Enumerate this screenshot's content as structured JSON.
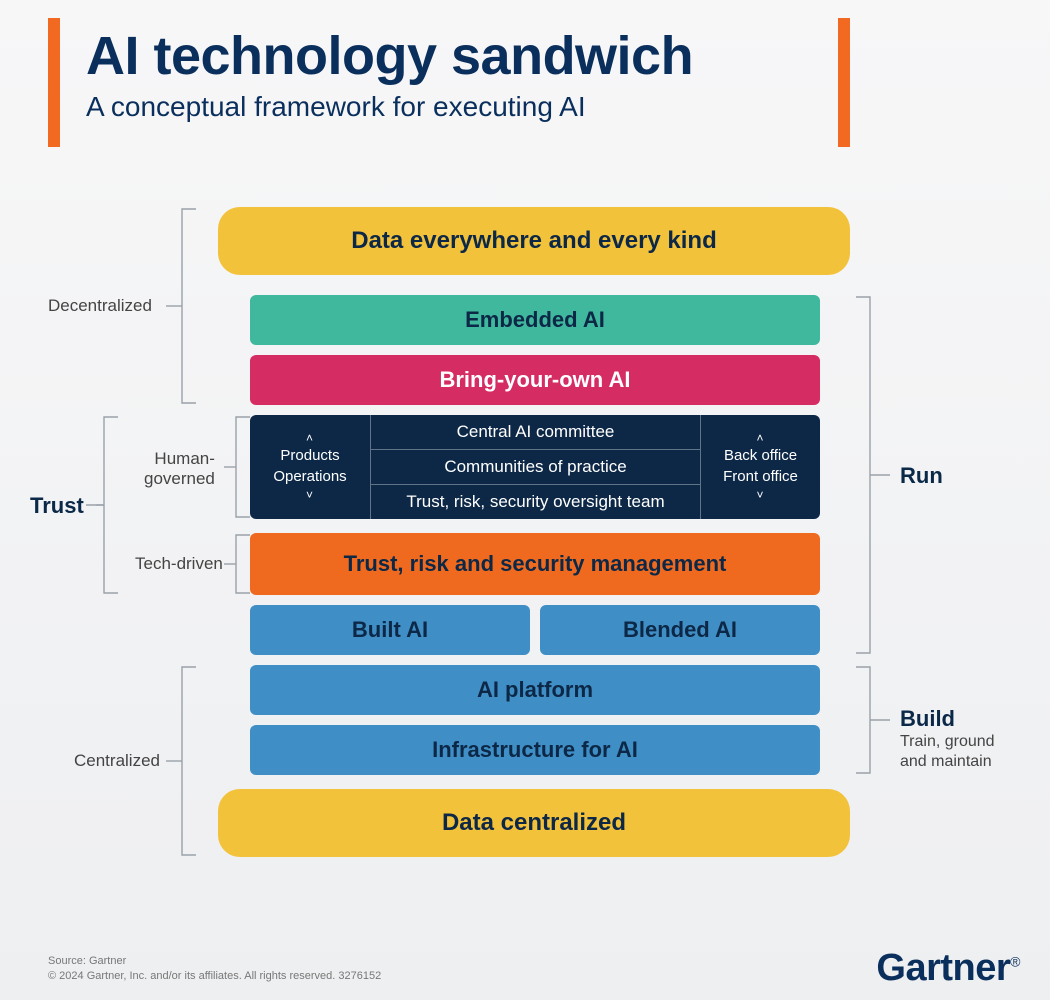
{
  "header": {
    "title": "AI technology sandwich",
    "subtitle": "A conceptual framework for executing AI",
    "accent_bar_color": "#f26a21",
    "title_color": "#0a2f5c",
    "subtitle_color": "#0a2f5c"
  },
  "colors": {
    "bread": "#f3c23b",
    "teal": "#3fb89d",
    "magenta": "#d52c63",
    "navy": "#0d2847",
    "orange": "#ef6a1f",
    "blue": "#3f8fc6",
    "bracket": "#9aa1a9",
    "text_on_bread": "#0d2847",
    "text_on_light": "#0d2847",
    "text_on_dark": "#ffffff"
  },
  "diagram": {
    "top_bread": "Data everywhere and every kind",
    "bottom_bread": "Data centralized",
    "layers": {
      "embedded": "Embedded AI",
      "byoa": "Bring-your-own AI",
      "trism": "Trust, risk and security management",
      "built": "Built AI",
      "blended": "Blended AI",
      "platform": "AI platform",
      "infra": "Infrastructure for AI"
    },
    "governance": {
      "left_top": "Products",
      "left_bottom": "Operations",
      "mid1": "Central AI committee",
      "mid2": "Communities of practice",
      "mid3": "Trust, risk, security oversight team",
      "right_top": "Back office",
      "right_bottom": "Front office"
    },
    "left_brackets": {
      "decentralized": "Decentralized",
      "human": "Human-\ngoverned",
      "tech": "Tech-driven",
      "centralized": "Centralized",
      "trust": "Trust"
    },
    "right_brackets": {
      "run": "Run",
      "build": "Build",
      "build_sub": "Train, ground\nand maintain"
    },
    "layout": {
      "bread_height": 68,
      "layer_height": 50,
      "gov_height": 104,
      "gap_v": 10,
      "pill_radius": 22,
      "layer_radius": 6
    }
  },
  "footer": {
    "line1": "Source: Gartner",
    "line2": "© 2024 Gartner, Inc. and/or its affiliates. All rights reserved. 3276152",
    "logo": "Gartner",
    "logo_color": "#0a2f5c"
  }
}
